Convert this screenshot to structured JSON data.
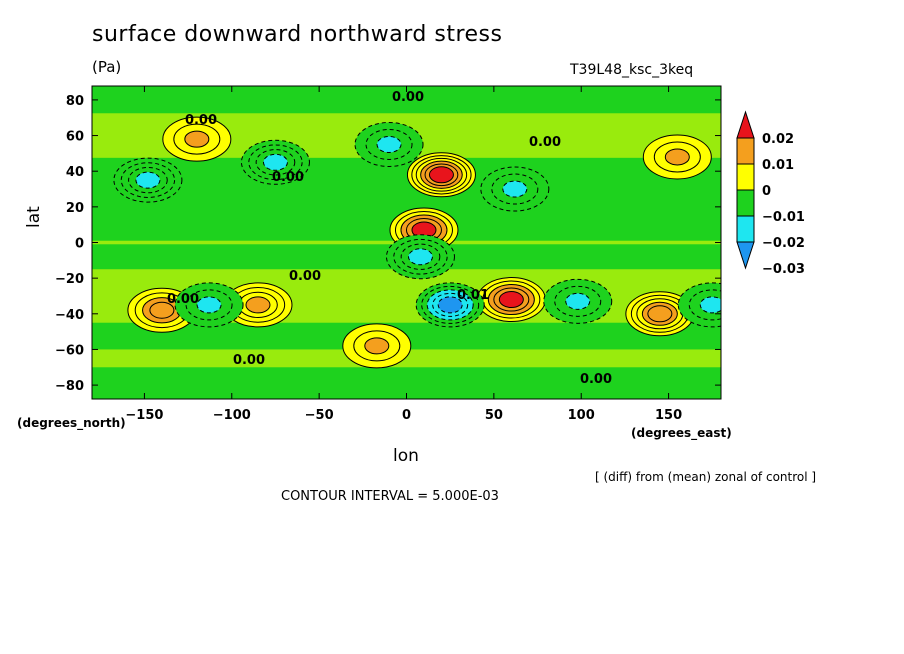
{
  "chart_data": {
    "type": "heatmap",
    "title": "surface downward northward stress",
    "units": "(Pa)",
    "run_label": "T39L48_ksc_3keq",
    "xlabel": "lon",
    "ylabel": "lat",
    "x_unit_label": "(degrees_east)",
    "y_unit_label": "(degrees_north)",
    "xlim": [
      -180,
      180
    ],
    "ylim": [
      -87.8,
      87.8
    ],
    "x_ticks": [
      -150,
      -100,
      -50,
      0,
      50,
      100,
      150
    ],
    "x_tick_labels": [
      "−150",
      "−100",
      "−50",
      "0",
      "50",
      "100",
      "150"
    ],
    "y_ticks": [
      80,
      60,
      40,
      20,
      0,
      -20,
      -40,
      -60,
      -80
    ],
    "y_tick_labels": [
      "80",
      "60",
      "40",
      "20",
      "0",
      "−20",
      "−40",
      "−60",
      "−80"
    ],
    "colorbar": {
      "levels": [
        0.02,
        0.01,
        0,
        -0.01,
        -0.02,
        -0.03
      ],
      "labels": [
        "0.02",
        "0.01",
        "0",
        "−0.01",
        "−0.02",
        "−0.03"
      ],
      "colors": {
        "above_0.02": "#e8141c",
        "0.01_to_0.02": "#f49f1e",
        "0_to_0.01": "#ffff00",
        "-0.01_to_0": "#1ed21e",
        "-0.02_to_-0.01": "#1ee6f0",
        "below_-0.02": "#1e96f0"
      }
    },
    "contour_labels": [
      "0.00",
      "0.00",
      "0.00",
      "0.00",
      "0.00",
      "0.00",
      "0.01",
      "0.00",
      "0.00"
    ],
    "features": [
      {
        "lon": 20,
        "lat": 38,
        "value": 0.025
      },
      {
        "lon": 10,
        "lat": 7,
        "value": 0.022
      },
      {
        "lon": 60,
        "lat": -32,
        "value": 0.022
      },
      {
        "lon": 145,
        "lat": -40,
        "value": 0.018
      },
      {
        "lon": -140,
        "lat": -38,
        "value": 0.016
      },
      {
        "lon": -85,
        "lat": -35,
        "value": 0.014
      },
      {
        "lon": -120,
        "lat": 58,
        "value": 0.012
      },
      {
        "lon": 155,
        "lat": 48,
        "value": 0.011
      },
      {
        "lon": -17,
        "lat": -58,
        "value": 0.011
      },
      {
        "lon": 25,
        "lat": -35,
        "value": -0.022
      },
      {
        "lon": 8,
        "lat": -8,
        "value": -0.014
      },
      {
        "lon": -148,
        "lat": 35,
        "value": -0.013
      },
      {
        "lon": -75,
        "lat": 45,
        "value": -0.014
      },
      {
        "lon": -10,
        "lat": 55,
        "value": -0.011
      },
      {
        "lon": -113,
        "lat": -35,
        "value": -0.012
      },
      {
        "lon": 62,
        "lat": 30,
        "value": -0.011
      },
      {
        "lon": 98,
        "lat": -33,
        "value": -0.011
      },
      {
        "lon": 175,
        "lat": -35,
        "value": -0.011
      }
    ]
  },
  "footer": {
    "diff_note": "[ (diff) from (mean) zonal of control ]",
    "contour_interval": "CONTOUR INTERVAL = 5.000E-03"
  }
}
